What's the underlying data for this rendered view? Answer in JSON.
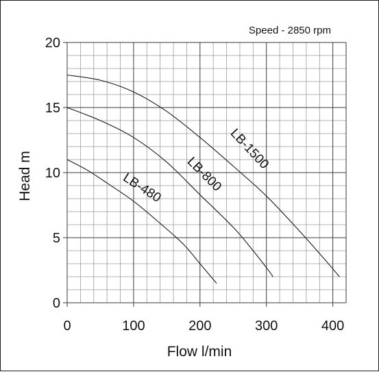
{
  "chart_data": {
    "type": "line",
    "title": "",
    "annotation": "Speed - 2850 rpm",
    "xlabel": "Flow l/min",
    "ylabel": "Head m",
    "xlim": [
      0,
      420
    ],
    "ylim": [
      0,
      20
    ],
    "xticks": [
      0,
      100,
      200,
      300,
      400
    ],
    "yticks": [
      0,
      5,
      10,
      15,
      20
    ],
    "grid": true,
    "legend": "none",
    "series": [
      {
        "name": "LB-480",
        "points": [
          [
            0,
            11
          ],
          [
            30,
            10.2
          ],
          [
            60,
            9.2
          ],
          [
            100,
            7.8
          ],
          [
            140,
            6.1
          ],
          [
            175,
            4.5
          ],
          [
            200,
            3.0
          ],
          [
            215,
            2.1
          ],
          [
            225,
            1.5
          ]
        ]
      },
      {
        "name": "LB-800",
        "points": [
          [
            0,
            15
          ],
          [
            50,
            14.0
          ],
          [
            100,
            12.7
          ],
          [
            150,
            10.8
          ],
          [
            200,
            8.3
          ],
          [
            250,
            5.8
          ],
          [
            280,
            4.0
          ],
          [
            300,
            2.7
          ],
          [
            310,
            2.0
          ]
        ]
      },
      {
        "name": "LB-1500",
        "points": [
          [
            0,
            17.5
          ],
          [
            50,
            17.1
          ],
          [
            100,
            16.2
          ],
          [
            150,
            14.7
          ],
          [
            200,
            12.7
          ],
          [
            250,
            10.5
          ],
          [
            300,
            8.2
          ],
          [
            350,
            5.5
          ],
          [
            390,
            3.2
          ],
          [
            410,
            2.0
          ]
        ]
      }
    ]
  }
}
